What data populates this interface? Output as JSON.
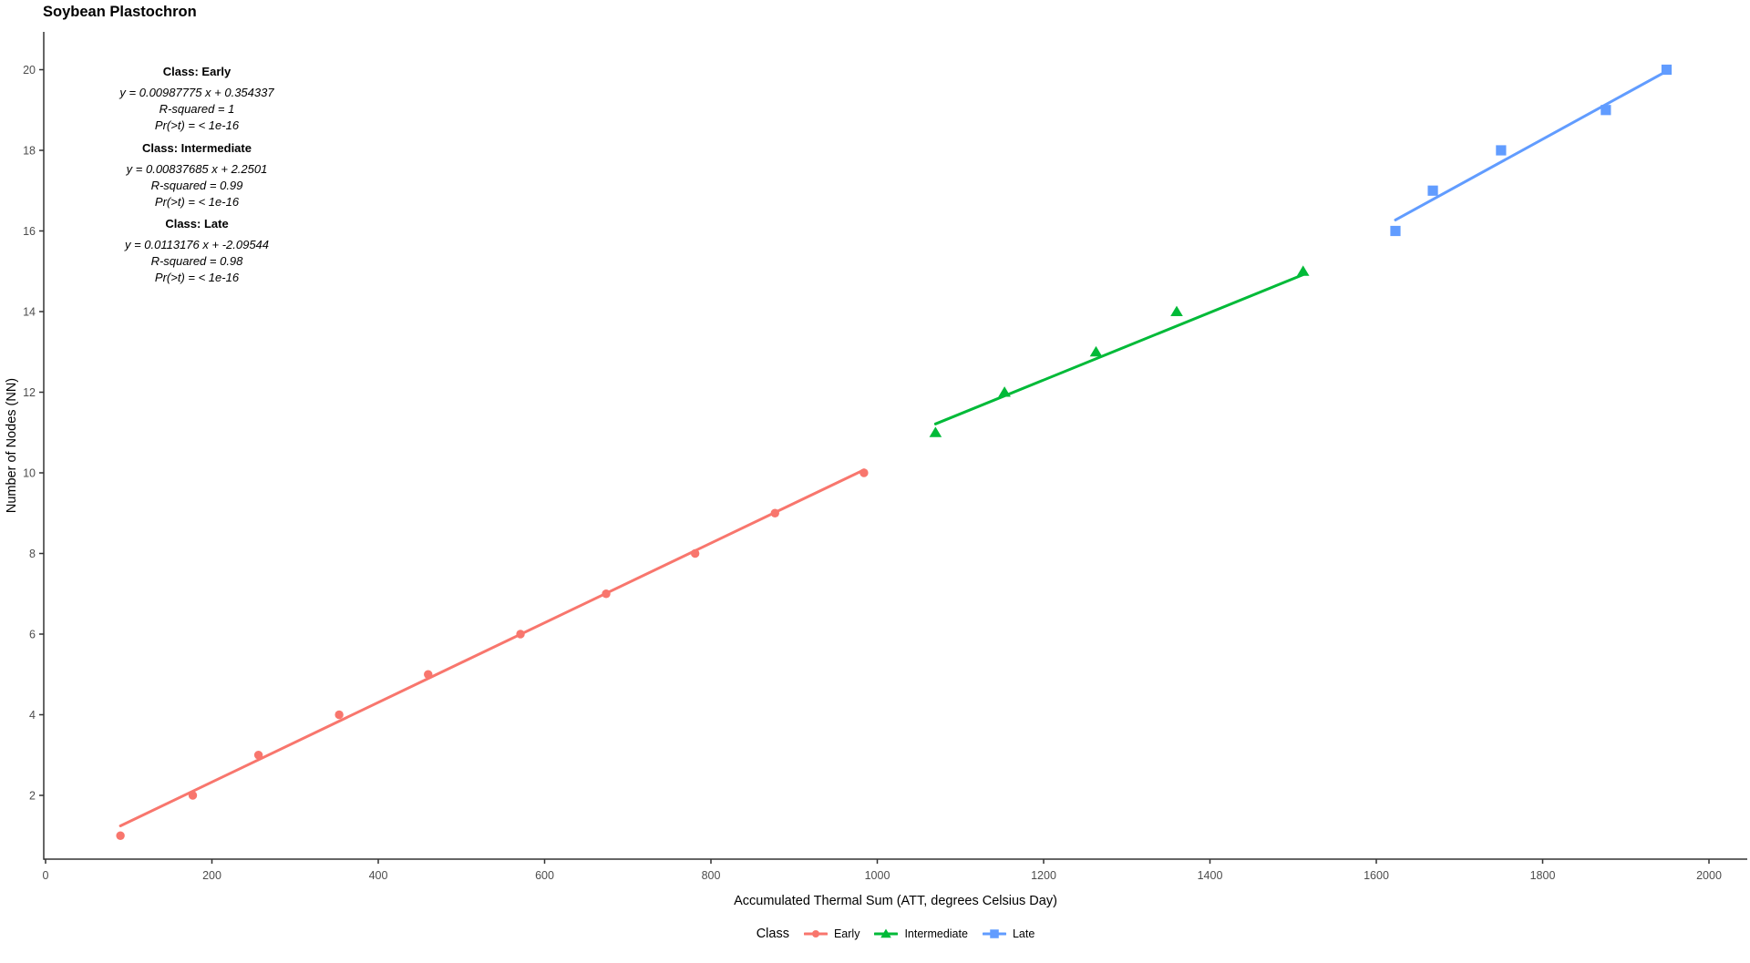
{
  "legend": {
    "title": "Class"
  },
  "chart_data": {
    "type": "scatter",
    "title": "Soybean Plastochron",
    "xlabel": "Accumulated Thermal Sum (ATT, degrees Celsius Day)",
    "ylabel": "Number of Nodes (NN)",
    "xlim": [
      0,
      2000
    ],
    "ylim": [
      0,
      21
    ],
    "x_ticks": [
      0,
      200,
      400,
      600,
      800,
      1000,
      1200,
      1400,
      1600,
      1800,
      2000
    ],
    "y_ticks": [
      2,
      4,
      6,
      8,
      10,
      12,
      14,
      16,
      18,
      20
    ],
    "grid": false,
    "legend_position": "bottom",
    "axis_color": "#333333",
    "tick_label_color": "#4d4d4d",
    "series": [
      {
        "name": "Early",
        "color": "#F8766D",
        "marker": "circle",
        "points": [
          [
            90,
            1
          ],
          [
            177,
            2
          ],
          [
            256,
            3
          ],
          [
            353,
            4
          ],
          [
            460,
            5
          ],
          [
            571,
            6
          ],
          [
            674,
            7
          ],
          [
            781,
            8
          ],
          [
            877,
            9
          ],
          [
            984,
            10
          ]
        ],
        "fit": {
          "slope": 0.00987775,
          "intercept": 0.354337,
          "r_squared": "1",
          "p_value": "< 1e-16",
          "x_range": [
            90,
            984
          ]
        }
      },
      {
        "name": "Intermediate",
        "color": "#00BA38",
        "marker": "triangle",
        "points": [
          [
            1070,
            11
          ],
          [
            1153,
            12
          ],
          [
            1263,
            13
          ],
          [
            1360,
            14
          ],
          [
            1512,
            15
          ]
        ],
        "fit": {
          "slope": 0.00837685,
          "intercept": 2.2501,
          "r_squared": "0.99",
          "p_value": "< 1e-16",
          "x_range": [
            1070,
            1512
          ]
        }
      },
      {
        "name": "Late",
        "color": "#619CFF",
        "marker": "square",
        "points": [
          [
            1623,
            16
          ],
          [
            1668,
            17
          ],
          [
            1750,
            18
          ],
          [
            1876,
            19
          ],
          [
            1949,
            20
          ]
        ],
        "fit": {
          "slope": 0.0113176,
          "intercept": -2.09544,
          "r_squared": "0.98",
          "p_value": "< 1e-16",
          "x_range": [
            1623,
            1949
          ]
        }
      }
    ],
    "annotations": [
      {
        "header": "Class: Early",
        "lines": [
          "y = 0.00987775 x + 0.354337",
          "R-squared = 1",
          "Pr(>t) = < 1e-16"
        ]
      },
      {
        "header": "Class: Intermediate",
        "lines": [
          "y = 0.00837685 x + 2.2501",
          "R-squared = 0.99",
          "Pr(>t) = < 1e-16"
        ]
      },
      {
        "header": "Class: Late",
        "lines": [
          "y = 0.0113176 x + -2.09544",
          "R-squared = 0.98",
          "Pr(>t) = < 1e-16"
        ]
      }
    ]
  }
}
